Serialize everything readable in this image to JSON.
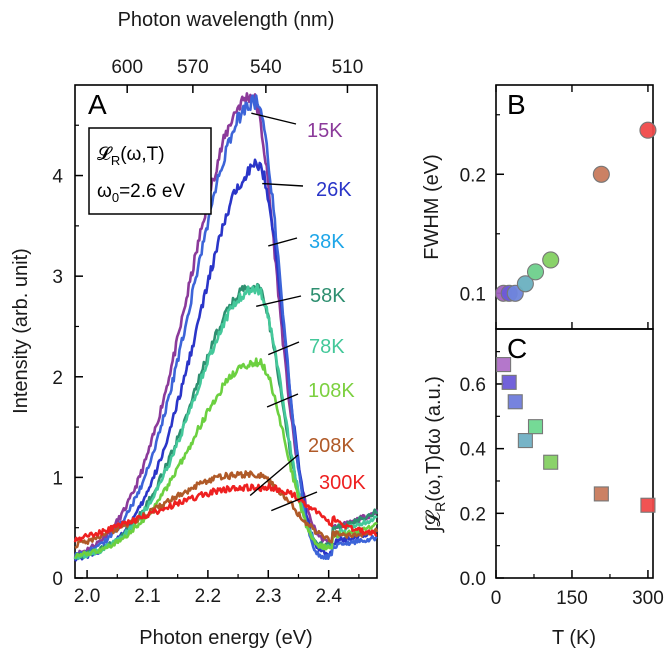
{
  "chart_data": [
    {
      "type": "line",
      "panel_label": "A",
      "xlabel": "Photon energy (eV)",
      "ylabel": "Intensity (arb. unit)",
      "top_xlabel": "Photon wavelength (nm)",
      "xlim": [
        1.98,
        2.48
      ],
      "ylim": [
        0,
        4.9
      ],
      "x_ticks": [
        "2.0",
        "2.1",
        "2.2",
        "2.3",
        "2.4"
      ],
      "x_tick_values": [
        2.0,
        2.1,
        2.2,
        2.3,
        2.4
      ],
      "y_ticks": [
        "0",
        "1",
        "2",
        "3",
        "4"
      ],
      "y_tick_values": [
        0,
        1,
        2,
        3,
        4
      ],
      "top_ticks": [
        "600",
        "570",
        "540",
        "510"
      ],
      "top_tick_values_nm": [
        600,
        570,
        540,
        510
      ],
      "legend": {
        "line1": "𝓛",
        "line1_sub": "R",
        "line1_rest": "(ω,T)",
        "line2": "ω",
        "line2_sub": "0",
        "line2_rest": "=2.6 eV"
      },
      "series": [
        {
          "name": "15K",
          "color": "#8b3a9a",
          "peak_x": 2.272,
          "peak_y": 4.62,
          "width": 0.1,
          "base_left": 0.17,
          "base_right": 0.55,
          "dip": 0.0
        },
        {
          "name": "26K",
          "color": "#2a35c8",
          "peak_x": 2.283,
          "peak_y": 3.95,
          "width": 0.098,
          "base_left": 0.16,
          "base_right": 0.4,
          "dip": 0.18
        },
        {
          "name": "38K",
          "color": "#3c64d8",
          "peak_x": 2.278,
          "peak_y": 4.58,
          "width": 0.099,
          "base_left": 0.17,
          "base_right": 0.35,
          "dip": 0.22
        },
        {
          "name": "58K",
          "color": "#2e8f70",
          "peak_x": 2.278,
          "peak_y": 2.73,
          "width": 0.1,
          "base_left": 0.18,
          "base_right": 0.55,
          "dip": 0.08
        },
        {
          "name": "78K",
          "color": "#44c89a",
          "peak_x": 2.28,
          "peak_y": 2.7,
          "width": 0.1,
          "base_left": 0.18,
          "base_right": 0.5,
          "dip": 0.1
        },
        {
          "name": "108K",
          "color": "#6cd040",
          "peak_x": 2.282,
          "peak_y": 1.97,
          "width": 0.105,
          "base_left": 0.19,
          "base_right": 0.45,
          "dip": 0.1
        },
        {
          "name": "208K",
          "color": "#b05a28",
          "peak_x": 2.272,
          "peak_y": 0.85,
          "width": 0.15,
          "base_left": 0.2,
          "base_right": 0.4,
          "dip": 0.0
        },
        {
          "name": "300K",
          "color": "#ee2020",
          "peak_x": 2.295,
          "peak_y": 0.72,
          "width": 0.19,
          "base_left": 0.2,
          "base_right": 0.35,
          "dip": 0.0
        }
      ],
      "annotations": [
        {
          "text": "15K",
          "color": "#8b3a9a",
          "x_data": 2.272,
          "y_data": 4.62
        },
        {
          "text": "26K",
          "color": "#2a35c8",
          "x_data": 2.29,
          "y_data": 3.92
        },
        {
          "text": "38K",
          "color": "#1ea6e8",
          "x_data": 2.3,
          "y_data": 3.3
        },
        {
          "text": "58K",
          "color": "#2e8f70",
          "x_data": 2.28,
          "y_data": 2.7
        },
        {
          "text": "78K",
          "color": "#44c89a",
          "x_data": 2.3,
          "y_data": 2.22
        },
        {
          "text": "108K",
          "color": "#7cd040",
          "x_data": 2.298,
          "y_data": 1.7
        },
        {
          "text": "208K",
          "color": "#b05a28",
          "x_data": 2.27,
          "y_data": 0.82
        },
        {
          "text": "300K",
          "color": "#ee2020",
          "x_data": 2.305,
          "y_data": 0.67
        }
      ]
    },
    {
      "type": "scatter",
      "panel_label": "B",
      "ylabel": "FWHM (eV)",
      "xlim": [
        0,
        310
      ],
      "ylim": [
        0.07,
        0.275
      ],
      "y_ticks": [
        "0.1",
        "0.2"
      ],
      "y_tick_values": [
        0.1,
        0.2
      ],
      "marker": "circle",
      "points": [
        {
          "x": 15,
          "y": 0.1,
          "color": "#a060c0"
        },
        {
          "x": 26,
          "y": 0.1,
          "color": "#6a5ad8"
        },
        {
          "x": 38,
          "y": 0.1,
          "color": "#6f86dc"
        },
        {
          "x": 58,
          "y": 0.108,
          "color": "#6ab0c0"
        },
        {
          "x": 78,
          "y": 0.118,
          "color": "#6ed08c"
        },
        {
          "x": 108,
          "y": 0.128,
          "color": "#84d062"
        },
        {
          "x": 208,
          "y": 0.2,
          "color": "#c87a5c"
        },
        {
          "x": 300,
          "y": 0.237,
          "color": "#f04a4a"
        }
      ]
    },
    {
      "type": "scatter",
      "panel_label": "C",
      "xlabel": "T (K)",
      "ylabel": "∫𝓛R(ω,T)dω (a.u.)",
      "ylabel_parts": {
        "a": "∫𝓛",
        "sub": "R",
        "b": "(ω,T)dω (a.u.)"
      },
      "xlim": [
        0,
        310
      ],
      "ylim": [
        0.0,
        0.77
      ],
      "x_ticks": [
        "0",
        "150",
        "300"
      ],
      "x_tick_values": [
        0,
        150,
        300
      ],
      "y_ticks": [
        "0.0",
        "0.2",
        "0.4",
        "0.6"
      ],
      "y_tick_values": [
        0.0,
        0.2,
        0.4,
        0.6
      ],
      "marker": "square",
      "points": [
        {
          "x": 15,
          "y": 0.66,
          "color": "#b070c8"
        },
        {
          "x": 26,
          "y": 0.605,
          "color": "#6a5ad8"
        },
        {
          "x": 38,
          "y": 0.545,
          "color": "#6f7cdc"
        },
        {
          "x": 58,
          "y": 0.425,
          "color": "#70b0c4"
        },
        {
          "x": 78,
          "y": 0.468,
          "color": "#6ed890"
        },
        {
          "x": 108,
          "y": 0.358,
          "color": "#84d062"
        },
        {
          "x": 208,
          "y": 0.26,
          "color": "#c87a5c"
        },
        {
          "x": 300,
          "y": 0.225,
          "color": "#f04a4a"
        }
      ]
    }
  ]
}
